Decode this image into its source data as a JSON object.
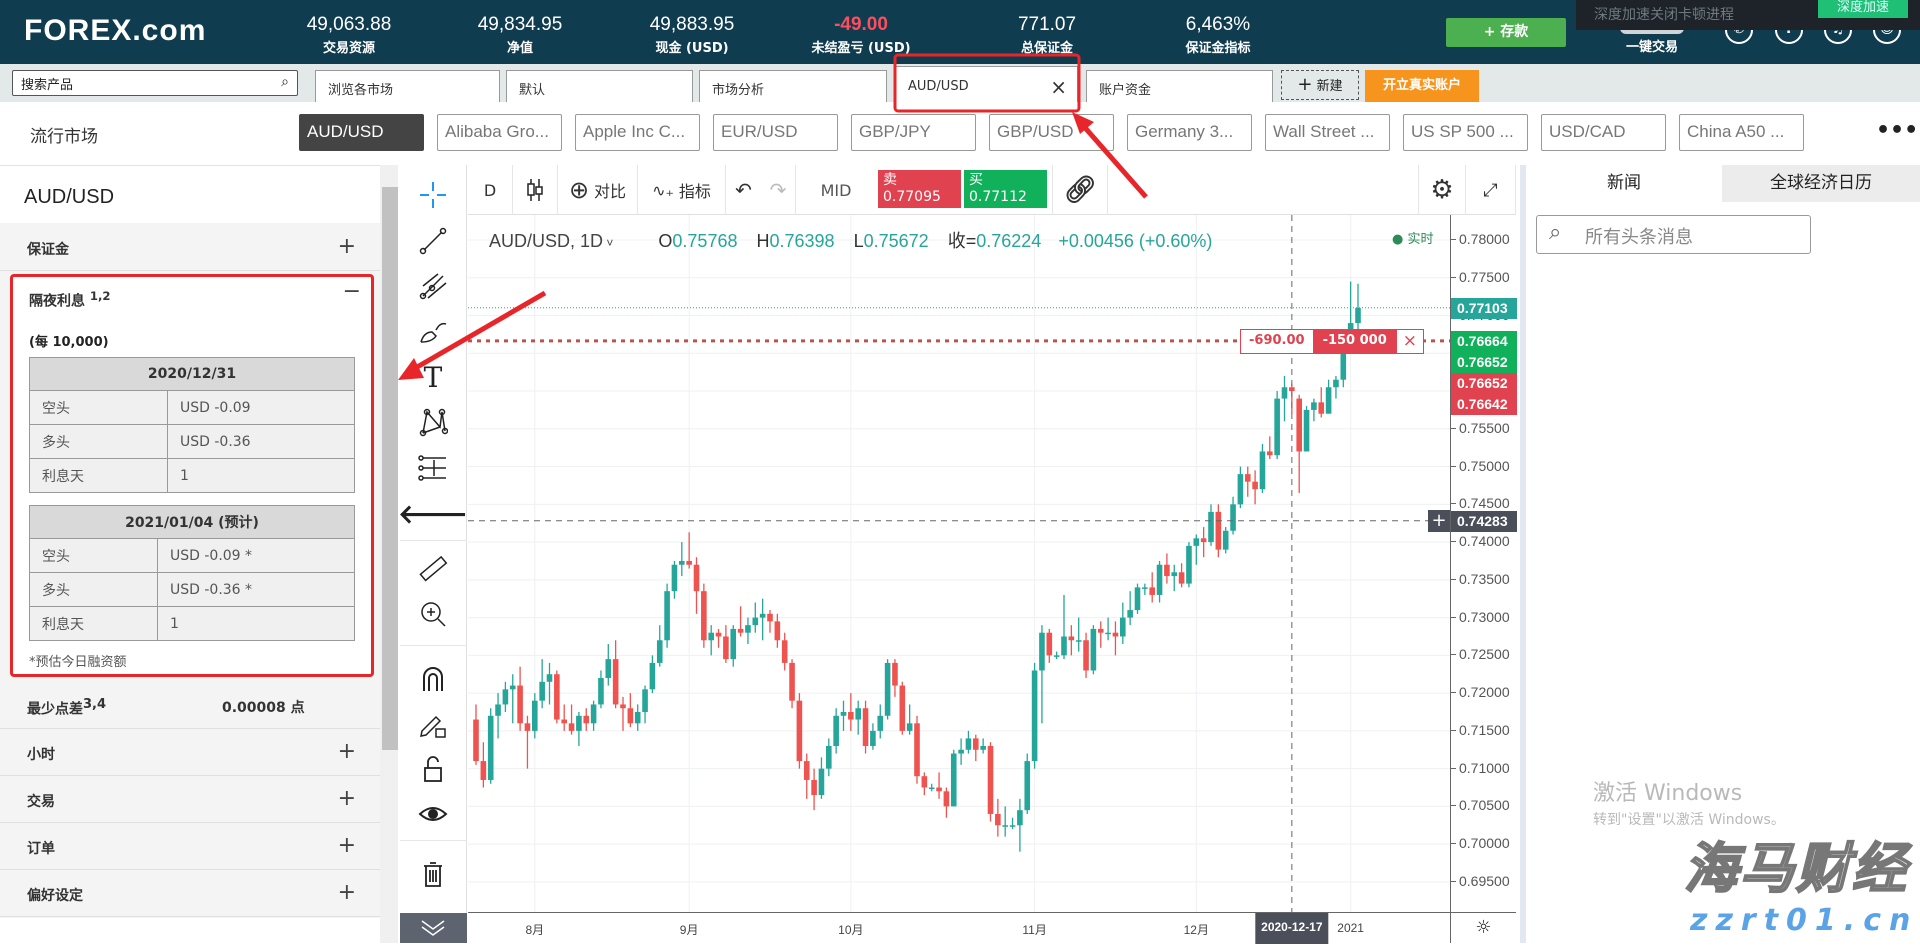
{
  "header": {
    "logo": "FOREX.com",
    "stats": [
      {
        "value": "49,063.88",
        "label": "交易资源"
      },
      {
        "value": "49,834.95",
        "label": "净值"
      },
      {
        "value": "49,883.95",
        "label": "现金 (USD)"
      },
      {
        "value": "-49.00",
        "label": "未结盈亏 (USD)",
        "negative": true
      },
      {
        "value": "771.07",
        "label": "总保证金"
      },
      {
        "value": "6,463%",
        "label": "保证金指标"
      }
    ],
    "deposit_label": "+ 存款",
    "one_click_label": "一键交易",
    "icons": [
      "phone-icon",
      "help-icon",
      "notification-icon",
      "user-icon"
    ],
    "popup": {
      "text": "深度加速关闭卡顿进程",
      "button": "深度加速"
    }
  },
  "tabs": {
    "search_placeholder": "搜索产品",
    "items": [
      {
        "label": "浏览各市场"
      },
      {
        "label": "默认"
      },
      {
        "label": "市场分析"
      },
      {
        "label": "AUD/USD",
        "active": true
      },
      {
        "label": "账户资金"
      }
    ],
    "new_label": "新建",
    "open_account_label": "开立真实账户"
  },
  "popular": {
    "label": "流行市场",
    "items": [
      "AUD/USD",
      "Alibaba Gro...",
      "Apple Inc C...",
      "EUR/USD",
      "GBP/JPY",
      "GBP/USD",
      "Germany 3...",
      "Wall Street ...",
      "US SP 500 ...",
      "USD/CAD",
      "China A50 ..."
    ]
  },
  "left_panel": {
    "title": "AUD/USD",
    "margin_label": "保证金",
    "overnight": {
      "title": "隔夜利息",
      "sup": "1,2",
      "per": "(每 10,000)",
      "tables": [
        {
          "date": "2020/12/31",
          "rows": [
            [
              "空头",
              "USD -0.09"
            ],
            [
              "多头",
              "USD -0.36"
            ],
            [
              "利息天",
              "1"
            ]
          ]
        },
        {
          "date": "2021/01/04 (预计)",
          "rows": [
            [
              "空头",
              "USD -0.09 *"
            ],
            [
              "多头",
              "USD -0.36 *"
            ],
            [
              "利息天",
              "1"
            ]
          ]
        }
      ],
      "note": "*预估今日融资额"
    },
    "min_spread": {
      "label": "最少点差",
      "sup": "3,4",
      "value": "0.00008 点"
    },
    "sections": [
      "小时",
      "交易",
      "订单",
      "偏好设定"
    ]
  },
  "chart_toolbar": {
    "interval": "D",
    "compare_label": "对比",
    "indicators_label": "指标",
    "mid_label": "MID",
    "sell": {
      "label": "卖",
      "price": "0.77095"
    },
    "buy": {
      "label": "买",
      "price": "0.77112"
    }
  },
  "chart_legend": {
    "symbol": "AUD/USD, 1D",
    "o_label": "O",
    "o": "0.75768",
    "h_label": "H",
    "h": "0.76398",
    "l_label": "L",
    "l": "0.75672",
    "c_label": "收=",
    "c": "0.76224",
    "change": "+0.00456 (+0.60%)",
    "realtime": "实时"
  },
  "price_tags": [
    {
      "value": "0.77103",
      "color": "#26a69a"
    },
    {
      "value": "0.76664",
      "color": "#11b05b"
    },
    {
      "value": "0.76652",
      "color": "#11b05b"
    },
    {
      "value": "0.76652",
      "color": "#e0424f"
    },
    {
      "value": "0.76642",
      "color": "#e0424f"
    },
    {
      "value": "0.74283",
      "color": "#4a4f5a"
    }
  ],
  "position_line": {
    "pnl": "-690.00",
    "size": "-150 000",
    "price": 0.76664
  },
  "crosshair": {
    "date_label": "2020-12-17",
    "price": 0.74283,
    "index": 111
  },
  "chart_data": {
    "type": "candlestick",
    "up_color": "#26a69a",
    "down_color": "#ef5350",
    "ylim": [
      0.6925,
      0.7825
    ],
    "yticks": [
      "0.78000",
      "0.77500",
      "0.77000",
      "0.76500",
      "0.76000",
      "0.75500",
      "0.75000",
      "0.74500",
      "0.74000",
      "0.73500",
      "0.73000",
      "0.72500",
      "0.72000",
      "0.71500",
      "0.71000",
      "0.70500",
      "0.70000",
      "0.69500"
    ],
    "xticks": [
      {
        "label": "8月",
        "index": 8
      },
      {
        "label": "9月",
        "index": 29
      },
      {
        "label": "10月",
        "index": 51
      },
      {
        "label": "11月",
        "index": 76
      },
      {
        "label": "12月",
        "index": 98
      },
      {
        "label": "2021",
        "index": 119
      }
    ],
    "ohlc": [
      [
        0.7165,
        0.7185,
        0.7105,
        0.711
      ],
      [
        0.711,
        0.7135,
        0.7075,
        0.7085
      ],
      [
        0.7085,
        0.718,
        0.708,
        0.717
      ],
      [
        0.717,
        0.72,
        0.714,
        0.7185
      ],
      [
        0.7185,
        0.7215,
        0.7175,
        0.7205
      ],
      [
        0.7205,
        0.7225,
        0.716,
        0.721
      ],
      [
        0.721,
        0.7235,
        0.715,
        0.716
      ],
      [
        0.716,
        0.717,
        0.71,
        0.715
      ],
      [
        0.715,
        0.72,
        0.714,
        0.719
      ],
      [
        0.719,
        0.7245,
        0.718,
        0.7215
      ],
      [
        0.7215,
        0.724,
        0.7185,
        0.7225
      ],
      [
        0.7225,
        0.723,
        0.716,
        0.7165
      ],
      [
        0.7165,
        0.7185,
        0.715,
        0.716
      ],
      [
        0.716,
        0.7185,
        0.7145,
        0.715
      ],
      [
        0.715,
        0.7175,
        0.713,
        0.717
      ],
      [
        0.717,
        0.718,
        0.715,
        0.716
      ],
      [
        0.716,
        0.719,
        0.715,
        0.7185
      ],
      [
        0.7185,
        0.723,
        0.718,
        0.722
      ],
      [
        0.722,
        0.7265,
        0.721,
        0.7245
      ],
      [
        0.7245,
        0.727,
        0.718,
        0.7185
      ],
      [
        0.7185,
        0.7195,
        0.715,
        0.718
      ],
      [
        0.718,
        0.72,
        0.7155,
        0.716
      ],
      [
        0.716,
        0.7185,
        0.715,
        0.7175
      ],
      [
        0.7175,
        0.721,
        0.716,
        0.7205
      ],
      [
        0.7205,
        0.725,
        0.72,
        0.724
      ],
      [
        0.724,
        0.729,
        0.7235,
        0.727
      ],
      [
        0.727,
        0.7345,
        0.726,
        0.7335
      ],
      [
        0.7335,
        0.7375,
        0.7325,
        0.737
      ],
      [
        0.737,
        0.74,
        0.7355,
        0.7375
      ],
      [
        0.7375,
        0.7413,
        0.7365,
        0.737
      ],
      [
        0.737,
        0.738,
        0.7305,
        0.7335
      ],
      [
        0.7335,
        0.7345,
        0.726,
        0.727
      ],
      [
        0.727,
        0.729,
        0.725,
        0.728
      ],
      [
        0.728,
        0.7285,
        0.726,
        0.7275
      ],
      [
        0.7275,
        0.729,
        0.724,
        0.7245
      ],
      [
        0.7245,
        0.729,
        0.7235,
        0.7285
      ],
      [
        0.7285,
        0.7315,
        0.7275,
        0.728
      ],
      [
        0.728,
        0.73,
        0.7265,
        0.729
      ],
      [
        0.729,
        0.732,
        0.728,
        0.73
      ],
      [
        0.73,
        0.7325,
        0.727,
        0.7305
      ],
      [
        0.7305,
        0.731,
        0.728,
        0.7295
      ],
      [
        0.7295,
        0.7305,
        0.726,
        0.727
      ],
      [
        0.727,
        0.728,
        0.723,
        0.724
      ],
      [
        0.724,
        0.7245,
        0.718,
        0.719
      ],
      [
        0.719,
        0.72,
        0.71,
        0.711
      ],
      [
        0.711,
        0.712,
        0.706,
        0.7085
      ],
      [
        0.7085,
        0.71,
        0.7045,
        0.7065
      ],
      [
        0.7065,
        0.7115,
        0.706,
        0.71
      ],
      [
        0.71,
        0.714,
        0.709,
        0.713
      ],
      [
        0.713,
        0.718,
        0.712,
        0.717
      ],
      [
        0.717,
        0.719,
        0.715,
        0.7175
      ],
      [
        0.7175,
        0.72,
        0.715,
        0.7165
      ],
      [
        0.7165,
        0.719,
        0.7145,
        0.718
      ],
      [
        0.718,
        0.719,
        0.712,
        0.713
      ],
      [
        0.713,
        0.716,
        0.7125,
        0.715
      ],
      [
        0.715,
        0.7185,
        0.714,
        0.717
      ],
      [
        0.717,
        0.7245,
        0.7165,
        0.724
      ],
      [
        0.724,
        0.7245,
        0.7195,
        0.721
      ],
      [
        0.721,
        0.7215,
        0.7145,
        0.715
      ],
      [
        0.715,
        0.7185,
        0.7145,
        0.716
      ],
      [
        0.716,
        0.717,
        0.708,
        0.709
      ],
      [
        0.709,
        0.7095,
        0.7065,
        0.7075
      ],
      [
        0.7075,
        0.708,
        0.707,
        0.7075
      ],
      [
        0.7075,
        0.7095,
        0.706,
        0.707
      ],
      [
        0.707,
        0.7075,
        0.7035,
        0.705
      ],
      [
        0.705,
        0.7125,
        0.705,
        0.712
      ],
      [
        0.712,
        0.714,
        0.7105,
        0.7125
      ],
      [
        0.7125,
        0.715,
        0.712,
        0.714
      ],
      [
        0.714,
        0.7145,
        0.711,
        0.7125
      ],
      [
        0.7125,
        0.714,
        0.712,
        0.713
      ],
      [
        0.713,
        0.7135,
        0.703,
        0.704
      ],
      [
        0.704,
        0.706,
        0.701,
        0.7025
      ],
      [
        0.7025,
        0.705,
        0.701,
        0.7025
      ],
      [
        0.7025,
        0.7035,
        0.702,
        0.7025
      ],
      [
        0.7025,
        0.706,
        0.699,
        0.7045
      ],
      [
        0.7045,
        0.712,
        0.704,
        0.711
      ],
      [
        0.711,
        0.724,
        0.71,
        0.723
      ],
      [
        0.723,
        0.729,
        0.716,
        0.728
      ],
      [
        0.728,
        0.7285,
        0.724,
        0.725
      ],
      [
        0.725,
        0.7255,
        0.7245,
        0.725
      ],
      [
        0.725,
        0.733,
        0.7245,
        0.7275
      ],
      [
        0.7275,
        0.729,
        0.725,
        0.727
      ],
      [
        0.727,
        0.73,
        0.7255,
        0.727
      ],
      [
        0.727,
        0.728,
        0.722,
        0.723
      ],
      [
        0.723,
        0.729,
        0.7225,
        0.7285
      ],
      [
        0.7285,
        0.7295,
        0.726,
        0.728
      ],
      [
        0.728,
        0.73,
        0.727,
        0.728
      ],
      [
        0.728,
        0.7295,
        0.725,
        0.7275
      ],
      [
        0.7275,
        0.732,
        0.7265,
        0.73
      ],
      [
        0.73,
        0.7335,
        0.729,
        0.731
      ],
      [
        0.731,
        0.7345,
        0.7305,
        0.734
      ],
      [
        0.734,
        0.7345,
        0.733,
        0.734
      ],
      [
        0.734,
        0.736,
        0.732,
        0.733
      ],
      [
        0.733,
        0.7375,
        0.732,
        0.737
      ],
      [
        0.737,
        0.7385,
        0.7345,
        0.7355
      ],
      [
        0.7355,
        0.737,
        0.7335,
        0.736
      ],
      [
        0.736,
        0.7372,
        0.734,
        0.7345
      ],
      [
        0.7345,
        0.74,
        0.734,
        0.7395
      ],
      [
        0.7395,
        0.741,
        0.737,
        0.7405
      ],
      [
        0.7405,
        0.742,
        0.738,
        0.74
      ],
      [
        0.74,
        0.745,
        0.7395,
        0.744
      ],
      [
        0.744,
        0.745,
        0.738,
        0.739
      ],
      [
        0.739,
        0.742,
        0.7385,
        0.7415
      ],
      [
        0.7415,
        0.746,
        0.741,
        0.745
      ],
      [
        0.745,
        0.75,
        0.7445,
        0.749
      ],
      [
        0.749,
        0.75,
        0.746,
        0.748
      ],
      [
        0.748,
        0.7495,
        0.745,
        0.747
      ],
      [
        0.747,
        0.753,
        0.7465,
        0.752
      ],
      [
        0.752,
        0.754,
        0.751,
        0.7515
      ],
      [
        0.7515,
        0.76,
        0.751,
        0.759
      ],
      [
        0.759,
        0.762,
        0.756,
        0.7605
      ],
      [
        0.7605,
        0.761,
        0.757,
        0.76
      ],
      [
        0.759,
        0.7595,
        0.7465,
        0.752
      ],
      [
        0.752,
        0.758,
        0.752,
        0.7575
      ],
      [
        0.7575,
        0.759,
        0.756,
        0.7585
      ],
      [
        0.7585,
        0.7605,
        0.7565,
        0.757
      ],
      [
        0.757,
        0.7615,
        0.757,
        0.7605
      ],
      [
        0.7605,
        0.762,
        0.759,
        0.7615
      ],
      [
        0.7615,
        0.767,
        0.7605,
        0.7665
      ],
      [
        0.7665,
        0.7745,
        0.766,
        0.769
      ],
      [
        0.769,
        0.7742,
        0.767,
        0.771
      ]
    ]
  },
  "right_panel": {
    "tabs": [
      {
        "label": "新闻",
        "active": true
      },
      {
        "label": "全球经济日历"
      }
    ],
    "search_placeholder": "所有头条消息"
  },
  "watermark": {
    "windows_title": "激活 Windows",
    "windows_sub": "转到\"设置\"以激活 Windows。",
    "brand": "海马财经",
    "brand_url": "zzrt01.cn"
  },
  "annotation_color": "#e8262a"
}
